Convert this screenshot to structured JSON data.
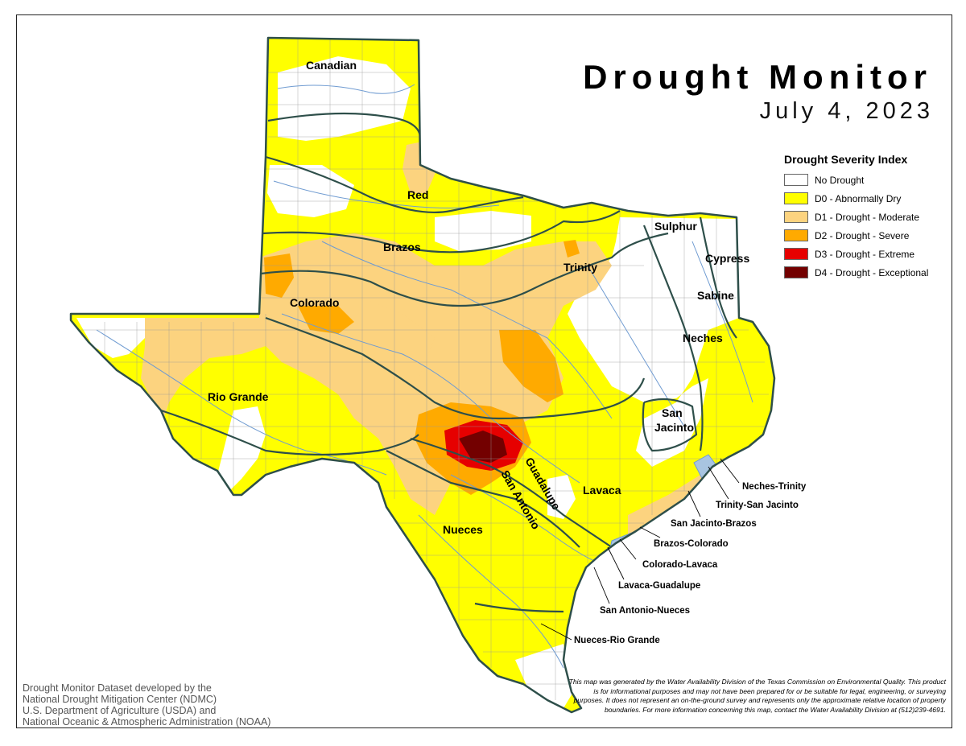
{
  "title": "Drought Monitor",
  "date": "July 4, 2023",
  "legend": {
    "title": "Drought Severity Index",
    "items": [
      {
        "label": "No Drought",
        "color": "#ffffff"
      },
      {
        "label": "D0 - Abnormally Dry",
        "color": "#ffff00"
      },
      {
        "label": "D1 - Drought - Moderate",
        "color": "#fcd37f"
      },
      {
        "label": "D2 - Drought - Severe",
        "color": "#ffaa00"
      },
      {
        "label": "D3 - Drought - Extreme",
        "color": "#e60000"
      },
      {
        "label": "D4 - Drought - Exceptional",
        "color": "#730000"
      }
    ]
  },
  "basins": {
    "canadian": "Canadian",
    "red": "Red",
    "brazos": "Brazos",
    "colorado": "Colorado",
    "rio_grande": "Rio Grande",
    "trinity": "Trinity",
    "sulphur": "Sulphur",
    "cypress": "Cypress",
    "sabine": "Sabine",
    "neches": "Neches",
    "san_jacinto_1": "San",
    "san_jacinto_2": "Jacinto",
    "guadalupe": "Guadalupe",
    "san_antonio": "San Antonio",
    "lavaca": "Lavaca",
    "nueces": "Nueces"
  },
  "coastal_basins": {
    "neches_trinity": "Neches-Trinity",
    "trinity_san_jacinto": "Trinity-San Jacinto",
    "san_jacinto_brazos": "San Jacinto-Brazos",
    "brazos_colorado": "Brazos-Colorado",
    "colorado_lavaca": "Colorado-Lavaca",
    "lavaca_guadalupe": "Lavaca-Guadalupe",
    "san_antonio_nueces": "San Antonio-Nueces",
    "nueces_rio_grande": "Nueces-Rio Grande"
  },
  "credit": [
    "Drought Monitor Dataset developed by the",
    "National Drought Mitigation Center (NDMC)",
    "U.S. Department of Agriculture (USDA) and",
    "National Oceanic & Atmospheric Administration (NOAA)"
  ],
  "disclaimer": "This map was generated by the Water Availability Division of the Texas Commission on Environmental Quality. This product is for informational purposes and may not have been prepared for or be suitable for legal, engineering, or surveying purposes. It does not represent an on-the-ground survey and represents only the approximate relative location of property boundaries. For more information concerning this map, contact the Water Availability Division at (512)239-4691."
}
